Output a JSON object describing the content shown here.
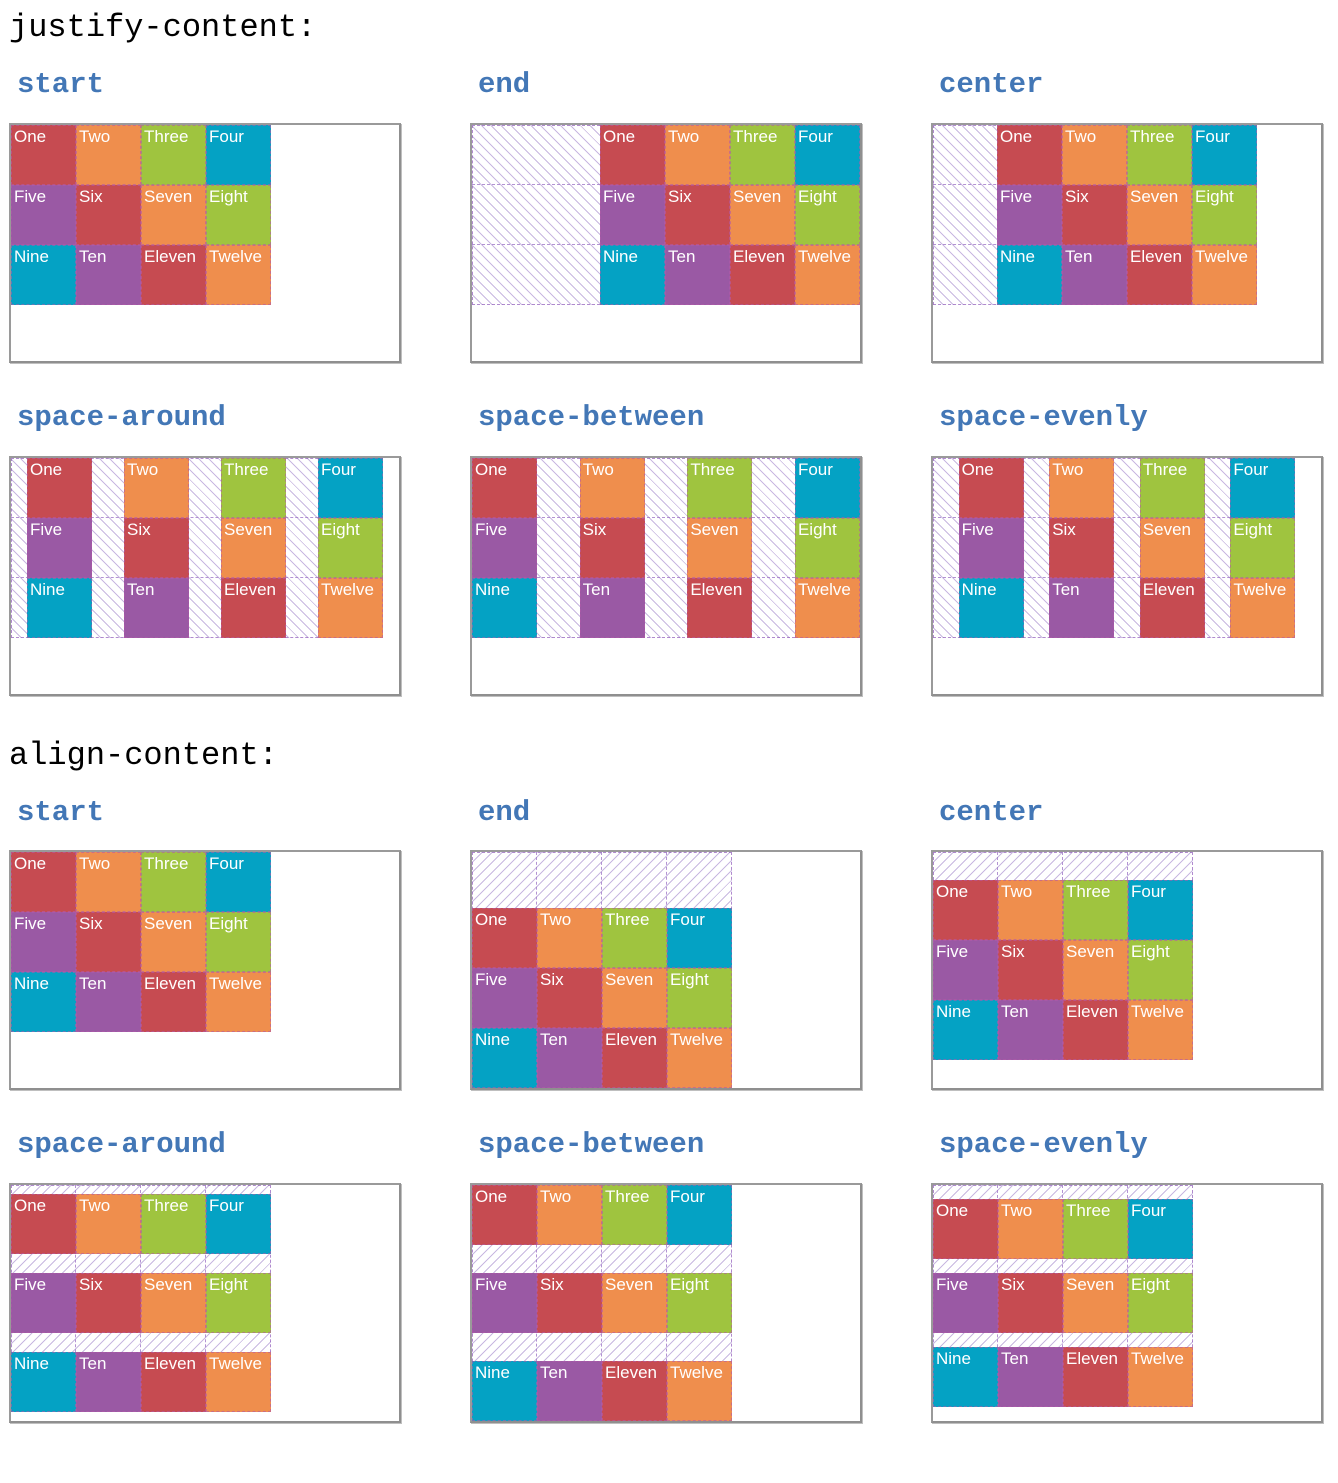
{
  "sections": [
    {
      "title": "justify-content:",
      "examples": [
        {
          "label": "start"
        },
        {
          "label": "end"
        },
        {
          "label": "center"
        },
        {
          "label": "space-around"
        },
        {
          "label": "space-between"
        },
        {
          "label": "space-evenly"
        }
      ]
    },
    {
      "title": "align-content:",
      "examples": [
        {
          "label": "start"
        },
        {
          "label": "end"
        },
        {
          "label": "center"
        },
        {
          "label": "space-around"
        },
        {
          "label": "space-between"
        },
        {
          "label": "space-evenly"
        }
      ]
    }
  ],
  "cells": [
    {
      "label": "One",
      "color": "#c64b51"
    },
    {
      "label": "Two",
      "color": "#ef8e4d"
    },
    {
      "label": "Three",
      "color": "#9fc43f"
    },
    {
      "label": "Four",
      "color": "#04a2c4"
    },
    {
      "label": "Five",
      "color": "#9a59a4"
    },
    {
      "label": "Six",
      "color": "#c64b51"
    },
    {
      "label": "Seven",
      "color": "#ef8e4d"
    },
    {
      "label": "Eight",
      "color": "#9fc43f"
    },
    {
      "label": "Nine",
      "color": "#04a2c4"
    },
    {
      "label": "Ten",
      "color": "#9a59a4"
    },
    {
      "label": "Eleven",
      "color": "#c64b51"
    },
    {
      "label": "Twelve",
      "color": "#ef8e4d"
    }
  ],
  "colors": {
    "heading": "#000000",
    "example_label_blue": "#4377b6",
    "box_border_gray": "#9a9a9a",
    "hatch_line_lavender": "#9c7dc8",
    "cell_text": "#ffffff"
  }
}
